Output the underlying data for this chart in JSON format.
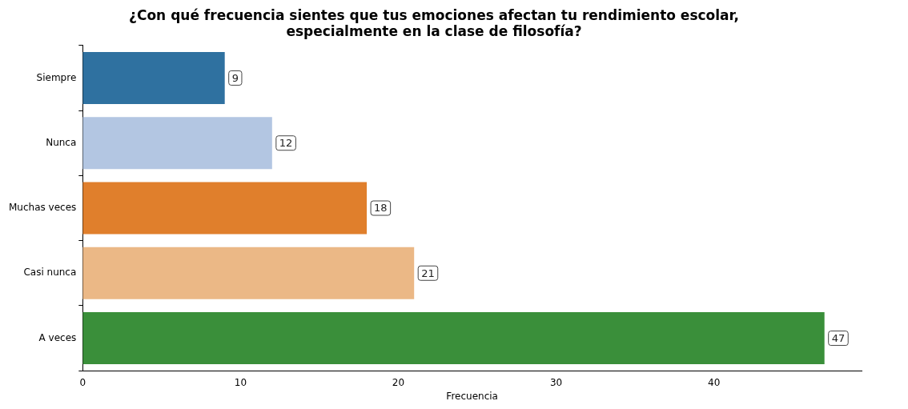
{
  "chart_data": {
    "type": "bar",
    "orientation": "horizontal",
    "title": "¿Con qué frecuencia sientes que tus emociones afectan tu rendimiento escolar,\nespecialmente en la clase de filosofía?",
    "xlabel": "Frecuencia",
    "categories": [
      "Siempre",
      "Nunca",
      "Muchas veces",
      "Casi nunca",
      "A veces"
    ],
    "values": [
      9,
      12,
      18,
      21,
      47
    ],
    "colors": [
      "#2f71a0",
      "#b3c6e2",
      "#e07f2c",
      "#ebb886",
      "#3a8f3a"
    ],
    "xlim": [
      0,
      49.35
    ],
    "xticks": [
      0,
      10,
      20,
      30,
      40
    ],
    "grid": false,
    "legend": false,
    "data_labels": true
  }
}
